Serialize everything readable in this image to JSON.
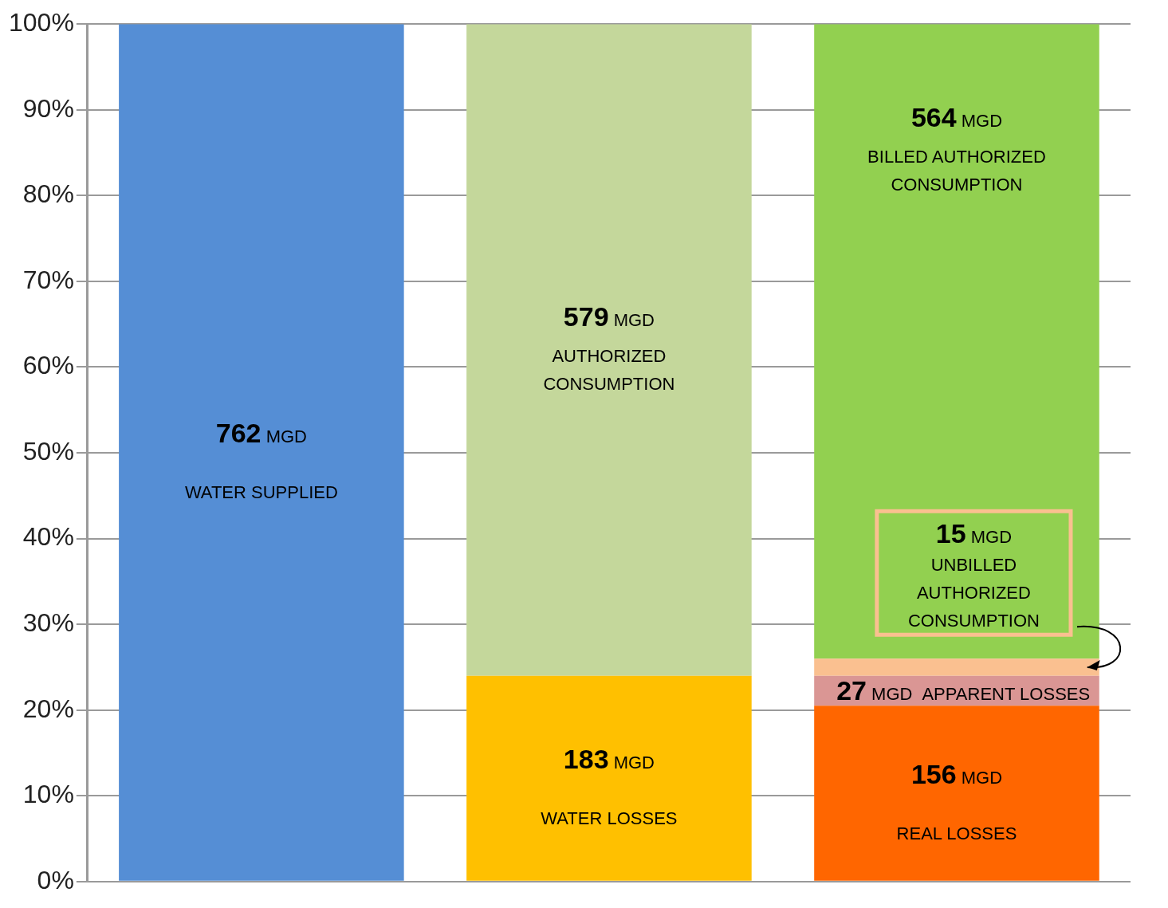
{
  "chart_data": {
    "type": "bar",
    "stacked": true,
    "categories": [
      null,
      null,
      null
    ],
    "ylim": [
      0,
      100
    ],
    "yticks": [
      {
        "value": 0,
        "label": "0%"
      },
      {
        "value": 10,
        "label": "10%"
      },
      {
        "value": 20,
        "label": "20%"
      },
      {
        "value": 30,
        "label": "30%"
      },
      {
        "value": 40,
        "label": "40%"
      },
      {
        "value": 50,
        "label": "50%"
      },
      {
        "value": 60,
        "label": "60%"
      },
      {
        "value": 70,
        "label": "70%"
      },
      {
        "value": 80,
        "label": "80%"
      },
      {
        "value": 90,
        "label": "90%"
      },
      {
        "value": 100,
        "label": "100%"
      }
    ],
    "grid": "y",
    "legend": false,
    "annotations": [
      "762 MGD",
      "183 MGD",
      "579 MGD",
      "156 MGD",
      "27 MGD",
      "15 MGD",
      "564 MGD"
    ],
    "series": [
      {
        "name": "WATER SUPPLIED",
        "color": "#558ed5",
        "values": [
          100,
          null,
          null
        ]
      },
      {
        "name": "WATER LOSSES",
        "color": "#ffc000",
        "values": [
          null,
          24.0,
          null
        ]
      },
      {
        "name": "AUTHORIZED CONSUMPTION",
        "color": "#c4d79b",
        "values": [
          null,
          76.0,
          null
        ]
      },
      {
        "name": "REAL LOSSES",
        "color": "#ff6600",
        "values": [
          null,
          null,
          20.5
        ]
      },
      {
        "name": "APPARENT LOSSES",
        "color": "#da9694",
        "values": [
          null,
          null,
          3.5
        ]
      },
      {
        "name": "UNBILLED AUTHORIZED CONSUMPTION",
        "color": "#fac090",
        "values": [
          null,
          null,
          2.0
        ]
      },
      {
        "name": "BILLED AUTHORIZED CONSUMPTION",
        "color": "#92d050",
        "values": [
          null,
          null,
          74.0
        ]
      }
    ]
  }
}
